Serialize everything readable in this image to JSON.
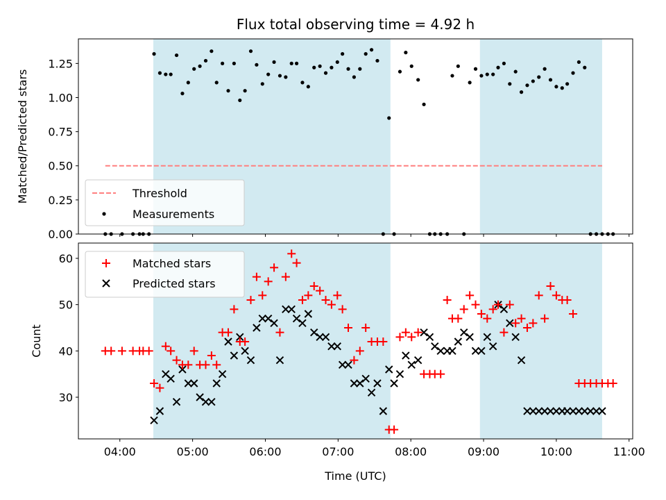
{
  "chart_data": {
    "type": "scatter",
    "title": "Flux total observing time = 4.92 h",
    "xlabel": "Time (UTC)",
    "x_unit": "hours UTC (decimal)",
    "xlim": [
      3.43,
      11.05
    ],
    "x_ticks": [
      4,
      5,
      6,
      7,
      8,
      9,
      10,
      11
    ],
    "x_tick_labels": [
      "04:00",
      "05:00",
      "06:00",
      "07:00",
      "08:00",
      "09:00",
      "10:00",
      "11:00"
    ],
    "shaded_intervals": [
      [
        4.46,
        7.72
      ],
      [
        8.95,
        10.63
      ]
    ],
    "shade_color": "#add8e6",
    "top": {
      "ylabel": "Matched/Predicted stars",
      "ylim": [
        0,
        1.43
      ],
      "y_ticks": [
        0,
        0.25,
        0.5,
        0.75,
        1.0,
        1.25
      ],
      "y_tick_labels": [
        "0.00",
        "0.25",
        "0.50",
        "0.75",
        "1.00",
        "1.25"
      ],
      "threshold": {
        "name": "Threshold",
        "value": 0.5,
        "x_range": [
          3.8,
          10.63
        ],
        "color": "#ff7f7f"
      },
      "measurements": {
        "name": "Measurements",
        "color": "#000000",
        "x": [
          3.8,
          3.88,
          4.03,
          4.18,
          4.27,
          4.32,
          4.4,
          4.47,
          4.55,
          4.63,
          4.7,
          4.78,
          4.86,
          4.94,
          5.02,
          5.1,
          5.18,
          5.26,
          5.33,
          5.41,
          5.49,
          5.57,
          5.65,
          5.72,
          5.8,
          5.88,
          5.96,
          6.04,
          6.12,
          6.2,
          6.28,
          6.36,
          6.43,
          6.51,
          6.59,
          6.67,
          6.75,
          6.83,
          6.91,
          6.99,
          7.06,
          7.14,
          7.22,
          7.3,
          7.38,
          7.46,
          7.54,
          7.62,
          7.7,
          7.77,
          7.85,
          7.93,
          8.01,
          8.1,
          8.18,
          8.26,
          8.33,
          8.41,
          8.5,
          8.57,
          8.65,
          8.73,
          8.81,
          8.89,
          8.97,
          9.05,
          9.13,
          9.2,
          9.28,
          9.36,
          9.44,
          9.52,
          9.6,
          9.68,
          9.76,
          9.84,
          9.92,
          10.0,
          10.08,
          10.15,
          10.23,
          10.31,
          10.39,
          10.47,
          10.55,
          10.63,
          10.71,
          10.78
        ],
        "y": [
          0,
          0,
          0,
          0,
          0,
          0,
          0,
          1.32,
          1.18,
          1.17,
          1.17,
          1.31,
          1.03,
          1.11,
          1.21,
          1.23,
          1.27,
          1.34,
          1.11,
          1.25,
          1.05,
          1.25,
          0.98,
          1.05,
          1.34,
          1.24,
          1.1,
          1.17,
          1.26,
          1.16,
          1.15,
          1.25,
          1.25,
          1.11,
          1.08,
          1.22,
          1.23,
          1.18,
          1.22,
          1.26,
          1.32,
          1.21,
          1.15,
          1.21,
          1.32,
          1.35,
          1.27,
          0,
          0.85,
          0,
          1.19,
          1.33,
          1.23,
          1.13,
          0.95,
          0,
          0,
          0,
          0.0,
          1.16,
          1.23,
          0,
          1.11,
          1.21,
          1.16,
          1.17,
          1.17,
          1.22,
          1.25,
          1.1,
          1.19,
          1.04,
          1.09,
          1.12,
          1.15,
          1.21,
          1.13,
          1.08,
          1.07,
          1.1,
          1.18,
          1.26,
          1.22,
          0,
          0,
          0,
          0,
          0
        ]
      },
      "legend_position": "lower-left"
    },
    "bottom": {
      "ylabel": "Count",
      "ylim": [
        21,
        63.3
      ],
      "y_ticks": [
        30,
        40,
        50,
        60
      ],
      "y_tick_labels": [
        "30",
        "40",
        "50",
        "60"
      ],
      "series": [
        {
          "name": "Matched stars",
          "marker": "plus",
          "color": "#ff0000",
          "x": [
            3.8,
            3.88,
            4.03,
            4.18,
            4.27,
            4.32,
            4.4,
            4.47,
            4.55,
            4.63,
            4.7,
            4.78,
            4.86,
            4.94,
            5.02,
            5.1,
            5.18,
            5.26,
            5.33,
            5.41,
            5.49,
            5.57,
            5.65,
            5.72,
            5.8,
            5.88,
            5.96,
            6.04,
            6.12,
            6.2,
            6.28,
            6.36,
            6.43,
            6.51,
            6.59,
            6.67,
            6.75,
            6.83,
            6.91,
            6.99,
            7.06,
            7.14,
            7.22,
            7.3,
            7.38,
            7.46,
            7.54,
            7.62,
            7.7,
            7.77,
            7.85,
            7.93,
            8.01,
            8.1,
            8.18,
            8.26,
            8.33,
            8.41,
            8.5,
            8.57,
            8.65,
            8.73,
            8.81,
            8.89,
            8.97,
            9.05,
            9.13,
            9.2,
            9.28,
            9.36,
            9.44,
            9.52,
            9.6,
            9.68,
            9.76,
            9.84,
            9.92,
            10.0,
            10.08,
            10.15,
            10.23,
            10.31,
            10.39,
            10.47,
            10.55,
            10.63,
            10.71,
            10.78
          ],
          "y": [
            40,
            40,
            40,
            40,
            40,
            40,
            40,
            33,
            32,
            41,
            40,
            38,
            37,
            37,
            40,
            37,
            37,
            39,
            37,
            44,
            44,
            49,
            42,
            42,
            51,
            56,
            52,
            55,
            58,
            44,
            56,
            61,
            59,
            51,
            52,
            54,
            53,
            51,
            50,
            52,
            49,
            45,
            38,
            40,
            45,
            42,
            42,
            42,
            23,
            23,
            43,
            44,
            43,
            44,
            35,
            35,
            35,
            35,
            51,
            47,
            47,
            49,
            52,
            50,
            48,
            47,
            49,
            50,
            44,
            50,
            46,
            47,
            45,
            46,
            52,
            47,
            54,
            52,
            51,
            51,
            48,
            33,
            33,
            33,
            33,
            33,
            33,
            33
          ]
        },
        {
          "name": "Predicted stars",
          "marker": "x",
          "color": "#000000",
          "x": [
            4.47,
            4.55,
            4.63,
            4.7,
            4.78,
            4.86,
            4.94,
            5.02,
            5.1,
            5.18,
            5.26,
            5.33,
            5.41,
            5.49,
            5.57,
            5.65,
            5.72,
            5.8,
            5.88,
            5.96,
            6.04,
            6.12,
            6.2,
            6.28,
            6.36,
            6.43,
            6.51,
            6.59,
            6.67,
            6.75,
            6.83,
            6.91,
            6.99,
            7.06,
            7.14,
            7.22,
            7.3,
            7.38,
            7.46,
            7.54,
            7.62,
            7.7,
            7.77,
            7.85,
            7.93,
            8.01,
            8.1,
            8.18,
            8.26,
            8.33,
            8.41,
            8.5,
            8.57,
            8.65,
            8.73,
            8.81,
            8.89,
            8.97,
            9.05,
            9.13,
            9.2,
            9.28,
            9.36,
            9.44,
            9.52,
            9.6,
            9.68,
            9.76,
            9.84,
            9.92,
            10.0,
            10.08,
            10.15,
            10.23,
            10.31,
            10.39,
            10.47,
            10.55,
            10.63
          ],
          "y": [
            25,
            27,
            35,
            34,
            29,
            36,
            33,
            33,
            30,
            29,
            29,
            33,
            35,
            42,
            39,
            43,
            40,
            38,
            45,
            47,
            47,
            46,
            38,
            49,
            49,
            47,
            46,
            48,
            44,
            43,
            43,
            41,
            41,
            37,
            37,
            33,
            33,
            34,
            31,
            33,
            27,
            36,
            33,
            35,
            39,
            37,
            38,
            44,
            43,
            41,
            40,
            40,
            40,
            42,
            44,
            43,
            40,
            40,
            43,
            41,
            50,
            49,
            46,
            43,
            38,
            27,
            27,
            27,
            27,
            27,
            27,
            27,
            27,
            27,
            27,
            27,
            27,
            27,
            27
          ]
        }
      ],
      "legend_position": "upper-left"
    }
  }
}
